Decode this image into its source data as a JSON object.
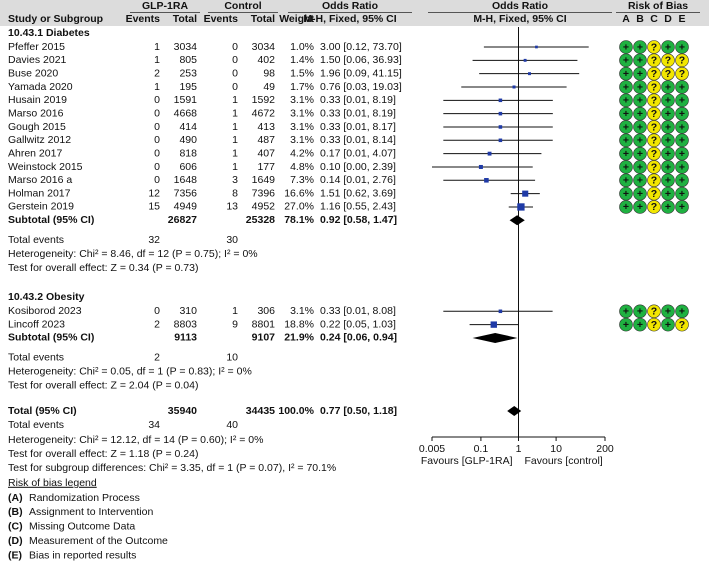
{
  "chart_data": {
    "type": "forest",
    "header": {
      "groups": [
        "GLP-1RA",
        "Control",
        "Odds Ratio",
        "Odds Ratio",
        "Risk of Bias"
      ],
      "columns": [
        "Study or Subgroup",
        "Events",
        "Total",
        "Events",
        "Total",
        "Weight",
        "M-H, Fixed, 95% CI",
        "M-H, Fixed, 95% CI"
      ],
      "bias_letters": [
        "A",
        "B",
        "C",
        "D",
        "E"
      ]
    },
    "subgroups": [
      {
        "title": "10.43.1 Diabetes",
        "studies": [
          {
            "name": "Pfeffer 2015",
            "e1": 1,
            "t1": 3034,
            "e2": 0,
            "t2": 3034,
            "weight": 1.0,
            "weight_label": "1.0%",
            "ci": "3.00 [0.12, 73.70]",
            "or": 3.0,
            "lo": 0.12,
            "hi": 73.7,
            "bias": [
              "+",
              "+",
              "?",
              "+",
              "+"
            ]
          },
          {
            "name": "Davies 2021",
            "e1": 1,
            "t1": 805,
            "e2": 0,
            "t2": 402,
            "weight": 1.4,
            "weight_label": "1.4%",
            "ci": "1.50 [0.06, 36.93]",
            "or": 1.5,
            "lo": 0.06,
            "hi": 36.93,
            "bias": [
              "+",
              "+",
              "?",
              "?",
              "?"
            ]
          },
          {
            "name": "Buse 2020",
            "e1": 2,
            "t1": 253,
            "e2": 0,
            "t2": 98,
            "weight": 1.5,
            "weight_label": "1.5%",
            "ci": "1.96 [0.09, 41.15]",
            "or": 1.96,
            "lo": 0.09,
            "hi": 41.15,
            "bias": [
              "+",
              "+",
              "?",
              "?",
              "?"
            ]
          },
          {
            "name": "Yamada 2020",
            "e1": 1,
            "t1": 195,
            "e2": 0,
            "t2": 49,
            "weight": 1.7,
            "weight_label": "1.7%",
            "ci": "0.76 [0.03, 19.03]",
            "or": 0.76,
            "lo": 0.03,
            "hi": 19.03,
            "bias": [
              "+",
              "+",
              "?",
              "+",
              "+"
            ]
          },
          {
            "name": "Husain 2019",
            "e1": 0,
            "t1": 1591,
            "e2": 1,
            "t2": 1592,
            "weight": 3.1,
            "weight_label": "3.1%",
            "ci": "0.33 [0.01, 8.19]",
            "or": 0.33,
            "lo": 0.01,
            "hi": 8.19,
            "bias": [
              "+",
              "+",
              "?",
              "+",
              "+"
            ]
          },
          {
            "name": "Marso 2016",
            "e1": 0,
            "t1": 4668,
            "e2": 1,
            "t2": 4672,
            "weight": 3.1,
            "weight_label": "3.1%",
            "ci": "0.33 [0.01, 8.19]",
            "or": 0.33,
            "lo": 0.01,
            "hi": 8.19,
            "bias": [
              "+",
              "+",
              "?",
              "+",
              "+"
            ]
          },
          {
            "name": "Gough 2015",
            "e1": 0,
            "t1": 414,
            "e2": 1,
            "t2": 413,
            "weight": 3.1,
            "weight_label": "3.1%",
            "ci": "0.33 [0.01, 8.17]",
            "or": 0.33,
            "lo": 0.01,
            "hi": 8.17,
            "bias": [
              "+",
              "+",
              "?",
              "+",
              "+"
            ]
          },
          {
            "name": "Gallwitz 2012",
            "e1": 0,
            "t1": 490,
            "e2": 1,
            "t2": 487,
            "weight": 3.1,
            "weight_label": "3.1%",
            "ci": "0.33 [0.01, 8.14]",
            "or": 0.33,
            "lo": 0.01,
            "hi": 8.14,
            "bias": [
              "+",
              "+",
              "?",
              "+",
              "+"
            ]
          },
          {
            "name": "Ahren 2017",
            "e1": 0,
            "t1": 818,
            "e2": 1,
            "t2": 407,
            "weight": 4.2,
            "weight_label": "4.2%",
            "ci": "0.17 [0.01, 4.07]",
            "or": 0.17,
            "lo": 0.01,
            "hi": 4.07,
            "bias": [
              "+",
              "+",
              "?",
              "+",
              "+"
            ]
          },
          {
            "name": "Weinstock 2015",
            "e1": 0,
            "t1": 606,
            "e2": 1,
            "t2": 177,
            "weight": 4.8,
            "weight_label": "4.8%",
            "ci": "0.10 [0.00, 2.39]",
            "or": 0.1,
            "lo": 0.0,
            "hi": 2.39,
            "bias": [
              "+",
              "+",
              "?",
              "+",
              "+"
            ]
          },
          {
            "name": "Marso 2016 a",
            "e1": 0,
            "t1": 1648,
            "e2": 3,
            "t2": 1649,
            "weight": 7.3,
            "weight_label": "7.3%",
            "ci": "0.14 [0.01, 2.76]",
            "or": 0.14,
            "lo": 0.01,
            "hi": 2.76,
            "bias": [
              "+",
              "+",
              "?",
              "+",
              "+"
            ]
          },
          {
            "name": "Holman 2017",
            "e1": 12,
            "t1": 7356,
            "e2": 8,
            "t2": 7396,
            "weight": 16.6,
            "weight_label": "16.6%",
            "ci": "1.51 [0.62, 3.69]",
            "or": 1.51,
            "lo": 0.62,
            "hi": 3.69,
            "bias": [
              "+",
              "+",
              "?",
              "+",
              "+"
            ]
          },
          {
            "name": "Gerstein 2019",
            "e1": 15,
            "t1": 4949,
            "e2": 13,
            "t2": 4952,
            "weight": 27.0,
            "weight_label": "27.0%",
            "ci": "1.16 [0.55, 2.43]",
            "or": 1.16,
            "lo": 0.55,
            "hi": 2.43,
            "bias": [
              "+",
              "+",
              "?",
              "+",
              "+"
            ]
          }
        ],
        "subtotal": {
          "name": "Subtotal (95% CI)",
          "t1": 26827,
          "t2": 25328,
          "weight": 78.1,
          "weight_label": "78.1%",
          "ci": "0.92 [0.58, 1.47]",
          "or": 0.92,
          "lo": 0.58,
          "hi": 1.47
        },
        "total_events": {
          "name": "Total events",
          "e1": 32,
          "e2": 30
        },
        "heterogeneity": "Heterogeneity: Chi² = 8.46, df = 12 (P = 0.75); I² = 0%",
        "overall_effect": "Test for overall effect: Z = 0.34 (P = 0.73)"
      },
      {
        "title": "10.43.2 Obesity",
        "studies": [
          {
            "name": "Kosiborod 2023",
            "e1": 0,
            "t1": 310,
            "e2": 1,
            "t2": 306,
            "weight": 3.1,
            "weight_label": "3.1%",
            "ci": "0.33 [0.01, 8.08]",
            "or": 0.33,
            "lo": 0.01,
            "hi": 8.08,
            "bias": [
              "+",
              "+",
              "?",
              "+",
              "+"
            ]
          },
          {
            "name": "Lincoff 2023",
            "e1": 2,
            "t1": 8803,
            "e2": 9,
            "t2": 8801,
            "weight": 18.8,
            "weight_label": "18.8%",
            "ci": "0.22 [0.05, 1.03]",
            "or": 0.22,
            "lo": 0.05,
            "hi": 1.03,
            "bias": [
              "+",
              "+",
              "?",
              "+",
              "?"
            ]
          }
        ],
        "subtotal": {
          "name": "Subtotal (95% CI)",
          "t1": 9113,
          "t2": 9107,
          "weight": 21.9,
          "weight_label": "21.9%",
          "ci": "0.24 [0.06, 0.94]",
          "or": 0.24,
          "lo": 0.06,
          "hi": 0.94
        },
        "total_events": {
          "name": "Total events",
          "e1": 2,
          "e2": 10
        },
        "heterogeneity": "Heterogeneity: Chi² = 0.05, df = 1 (P = 0.83); I² = 0%",
        "overall_effect": "Test for overall effect: Z = 2.04 (P = 0.04)"
      }
    ],
    "total": {
      "name": "Total (95% CI)",
      "t1": 35940,
      "t2": 34435,
      "weight": 100.0,
      "weight_label": "100.0%",
      "ci": "0.77 [0.50, 1.18]",
      "or": 0.77,
      "lo": 0.5,
      "hi": 1.18
    },
    "total_events": {
      "name": "Total events",
      "e1": 34,
      "e2": 40
    },
    "heterogeneity": "Heterogeneity: Chi² = 12.12, df = 14 (P = 0.60); I² = 0%",
    "overall_effect": "Test for overall effect: Z = 1.18 (P = 0.24)",
    "subgroup_differences": "Test for subgroup differences: Chi² = 3.35, df = 1 (P = 0.07), I² = 70.1%",
    "legend": {
      "title": "Risk of bias legend",
      "items": [
        {
          "key": "(A)",
          "text": "Randomization Process"
        },
        {
          "key": "(B)",
          "text": "Assignment to Intervention"
        },
        {
          "key": "(C)",
          "text": "Missing Outcome Data"
        },
        {
          "key": "(D)",
          "text": "Measurement of the Outcome"
        },
        {
          "key": "(E)",
          "text": "Bias in reported results"
        }
      ]
    },
    "xscale": "log",
    "xlim": [
      0.005,
      200
    ],
    "xticks": [
      0.005,
      0.1,
      1,
      10,
      200
    ],
    "null_line": 1,
    "favours_left": "Favours [GLP-1RA]",
    "favours_right": "Favours [control]",
    "square_color": "#1f3aa6",
    "bias_colors": {
      "+": "#1fb141",
      "?": "#f2e600"
    }
  }
}
